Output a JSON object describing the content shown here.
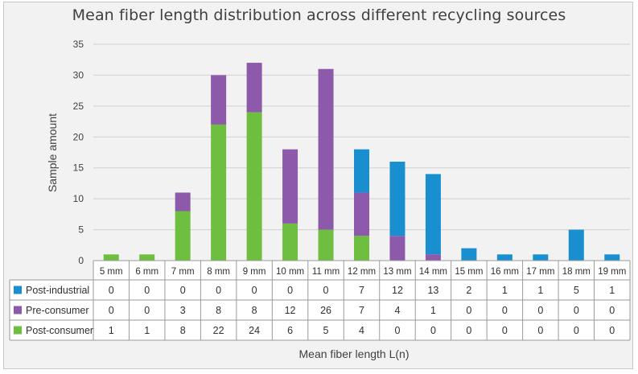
{
  "chart_data": {
    "type": "bar",
    "stacked": true,
    "title": "Mean fiber length distribution across different recycling sources",
    "xlabel": "Mean fiber length L(n)",
    "ylabel": "Sample amount",
    "ylim": [
      0,
      35
    ],
    "yticks": [
      "0",
      "5",
      "10",
      "15",
      "20",
      "25",
      "30",
      "35"
    ],
    "grid": true,
    "legend": "data-table",
    "categories": [
      "5 mm",
      "6 mm",
      "7 mm",
      "8 mm",
      "9 mm",
      "10 mm",
      "11 mm",
      "12 mm",
      "13 mm",
      "14 mm",
      "15 mm",
      "16 mm",
      "17 mm",
      "18 mm",
      "19 mm"
    ],
    "series": [
      {
        "name": "Post-industrial",
        "color": "#1a8fd0",
        "values": [
          0,
          0,
          0,
          0,
          0,
          0,
          0,
          7,
          12,
          13,
          2,
          1,
          1,
          5,
          1
        ]
      },
      {
        "name": "Pre-consumer",
        "color": "#8d5aab",
        "values": [
          0,
          0,
          3,
          8,
          8,
          12,
          26,
          7,
          4,
          1,
          0,
          0,
          0,
          0,
          0
        ]
      },
      {
        "name": "Post-consumer",
        "color": "#6ebf3f",
        "values": [
          1,
          1,
          8,
          22,
          24,
          6,
          5,
          4,
          0,
          0,
          0,
          0,
          0,
          0,
          0
        ]
      }
    ]
  }
}
